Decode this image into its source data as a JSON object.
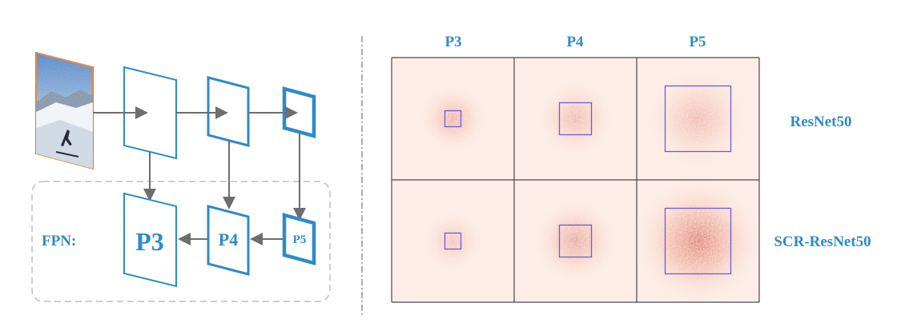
{
  "colors": {
    "accent": "#2E8BC9",
    "arrow": "#6E6E6E",
    "grid_border": "#4A4A4A",
    "box": "#6A5FD6",
    "heat_light": "#FDEDE6",
    "heat_dark": "#C2271B",
    "dashed": "#BDBDBD",
    "image_border": "#E07A2E"
  },
  "left": {
    "fpn_label": "FPN:",
    "pyramid_levels": [
      "P3",
      "P4",
      "P5"
    ]
  },
  "right": {
    "column_headers": [
      "P3",
      "P4",
      "P5"
    ],
    "row_labels": [
      "ResNet50",
      "SCR-ResNet50"
    ],
    "receptive_fields": [
      [
        {
          "level": "P3",
          "intensity": 0.35
        },
        {
          "level": "P4",
          "intensity": 0.25
        },
        {
          "level": "P5",
          "intensity": 0.25
        }
      ],
      [
        {
          "level": "P3",
          "intensity": 0.15
        },
        {
          "level": "P4",
          "intensity": 0.45
        },
        {
          "level": "P5",
          "intensity": 0.85
        }
      ]
    ]
  }
}
